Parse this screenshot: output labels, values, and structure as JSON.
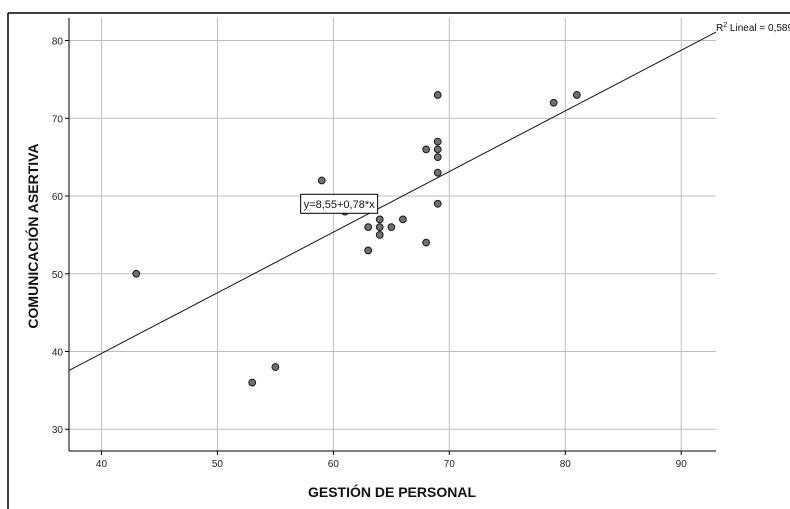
{
  "chart_data": {
    "type": "scatter",
    "xlabel": "GESTIÓN DE PERSONAL",
    "ylabel": "COMUNICACIÓN ASERTIVA",
    "xlim": [
      37.2,
      93
    ],
    "ylim": [
      27.2,
      82.9
    ],
    "x_ticks": [
      "40",
      "50",
      "60",
      "70",
      "80",
      "90"
    ],
    "y_ticks": [
      "30",
      "40",
      "50",
      "60",
      "70",
      "80"
    ],
    "grid": true,
    "points": [
      {
        "x": 43,
        "y": 50
      },
      {
        "x": 53,
        "y": 36
      },
      {
        "x": 55,
        "y": 38
      },
      {
        "x": 59,
        "y": 62
      },
      {
        "x": 59,
        "y": 59
      },
      {
        "x": 61,
        "y": 59
      },
      {
        "x": 61,
        "y": 58
      },
      {
        "x": 63,
        "y": 56
      },
      {
        "x": 63,
        "y": 53
      },
      {
        "x": 64,
        "y": 57
      },
      {
        "x": 64,
        "y": 56
      },
      {
        "x": 64,
        "y": 55
      },
      {
        "x": 65,
        "y": 56
      },
      {
        "x": 66,
        "y": 57
      },
      {
        "x": 68,
        "y": 66
      },
      {
        "x": 68,
        "y": 54
      },
      {
        "x": 69,
        "y": 73
      },
      {
        "x": 69,
        "y": 67
      },
      {
        "x": 69,
        "y": 66
      },
      {
        "x": 69,
        "y": 65
      },
      {
        "x": 69,
        "y": 63
      },
      {
        "x": 69,
        "y": 59
      },
      {
        "x": 79,
        "y": 72
      },
      {
        "x": 81,
        "y": 73
      }
    ],
    "fit_line": {
      "intercept": 8.55,
      "slope": 0.78
    },
    "equation_label": "y=8,55+0,78*x",
    "r2_label_prefix": "R",
    "r2_label_sup": "2",
    "r2_label_suffix": " Lineal = 0,589",
    "colors": {
      "point_fill": "#707070",
      "point_stroke": "#1a1a1a",
      "grid": "#bdbdbd",
      "line": "#111111",
      "frame": "#000000"
    }
  }
}
